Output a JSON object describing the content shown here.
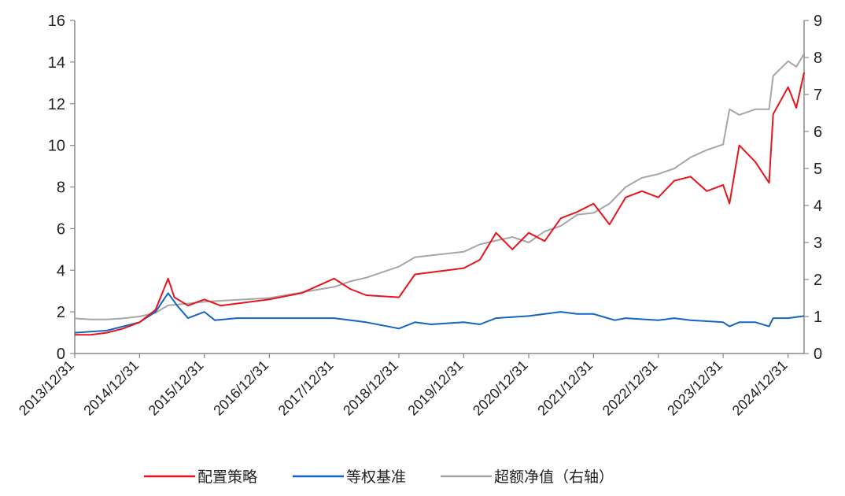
{
  "chart_data": {
    "type": "line",
    "title": "",
    "x_tick_labels": [
      "2013/12/31",
      "2014/12/31",
      "2015/12/31",
      "2016/12/31",
      "2017/12/31",
      "2018/12/31",
      "2019/12/31",
      "2020/12/31",
      "2021/12/31",
      "2022/12/31",
      "2023/12/31",
      "2024/12/31"
    ],
    "x_range": [
      "2013/12/31",
      "2025/03/31"
    ],
    "y_left": {
      "min": 0,
      "max": 16,
      "ticks": [
        0,
        2,
        4,
        6,
        8,
        10,
        12,
        14,
        16
      ]
    },
    "y_right": {
      "min": 0,
      "max": 9,
      "ticks": [
        0,
        1,
        2,
        3,
        4,
        5,
        6,
        7,
        8,
        9
      ]
    },
    "grid": false,
    "legend_position": "bottom",
    "series": [
      {
        "name": "配置策略",
        "axis": "left",
        "color": "#e8141c",
        "x": [
          "2013/12/31",
          "2014/03/31",
          "2014/06/30",
          "2014/09/30",
          "2014/12/31",
          "2015/03/31",
          "2015/06/10",
          "2015/07/15",
          "2015/09/30",
          "2015/12/31",
          "2016/03/31",
          "2016/06/30",
          "2016/12/31",
          "2017/06/30",
          "2017/12/31",
          "2018/03/31",
          "2018/06/30",
          "2018/12/31",
          "2019/03/31",
          "2019/06/30",
          "2019/12/31",
          "2020/03/31",
          "2020/06/30",
          "2020/09/30",
          "2020/12/31",
          "2021/03/31",
          "2021/06/30",
          "2021/09/30",
          "2021/12/31",
          "2022/03/31",
          "2022/06/30",
          "2022/09/30",
          "2022/12/31",
          "2023/03/31",
          "2023/06/30",
          "2023/09/30",
          "2023/12/31",
          "2024/02/05",
          "2024/03/31",
          "2024/06/30",
          "2024/09/15",
          "2024/10/08",
          "2024/12/31",
          "2025/02/15",
          "2025/03/31"
        ],
        "values": [
          0.9,
          0.9,
          1.0,
          1.2,
          1.5,
          2.1,
          3.6,
          2.7,
          2.3,
          2.6,
          2.3,
          2.4,
          2.6,
          2.9,
          3.6,
          3.1,
          2.8,
          2.7,
          3.8,
          3.9,
          4.1,
          4.5,
          5.8,
          5.0,
          5.8,
          5.4,
          6.5,
          6.8,
          7.2,
          6.2,
          7.5,
          7.8,
          7.5,
          8.3,
          8.5,
          7.8,
          8.1,
          7.2,
          10.0,
          9.2,
          8.2,
          11.5,
          12.8,
          11.8,
          13.5
        ]
      },
      {
        "name": "等权基准",
        "axis": "left",
        "color": "#1565c0",
        "x": [
          "2013/12/31",
          "2014/06/30",
          "2014/12/31",
          "2015/03/31",
          "2015/06/10",
          "2015/07/31",
          "2015/09/30",
          "2015/12/31",
          "2016/02/28",
          "2016/06/30",
          "2016/12/31",
          "2017/06/30",
          "2017/12/31",
          "2018/06/30",
          "2018/12/31",
          "2019/03/31",
          "2019/06/30",
          "2019/12/31",
          "2020/03/31",
          "2020/06/30",
          "2020/12/31",
          "2021/03/31",
          "2021/06/30",
          "2021/09/30",
          "2021/12/31",
          "2022/04/30",
          "2022/06/30",
          "2022/12/31",
          "2023/03/31",
          "2023/06/30",
          "2023/12/31",
          "2024/02/05",
          "2024/03/31",
          "2024/06/30",
          "2024/09/15",
          "2024/10/08",
          "2024/12/31",
          "2025/03/31"
        ],
        "values": [
          1.0,
          1.1,
          1.5,
          2.0,
          2.9,
          2.3,
          1.7,
          2.0,
          1.6,
          1.7,
          1.7,
          1.7,
          1.7,
          1.5,
          1.2,
          1.5,
          1.4,
          1.5,
          1.4,
          1.7,
          1.8,
          1.9,
          2.0,
          1.9,
          1.9,
          1.6,
          1.7,
          1.6,
          1.7,
          1.6,
          1.5,
          1.3,
          1.5,
          1.5,
          1.3,
          1.7,
          1.7,
          1.8
        ]
      },
      {
        "name": "超额净值（右轴）",
        "axis": "right",
        "color": "#a6a6a6",
        "x": [
          "2013/12/31",
          "2014/03/31",
          "2014/06/30",
          "2014/09/30",
          "2014/12/31",
          "2015/03/31",
          "2015/06/10",
          "2015/09/30",
          "2015/12/31",
          "2016/06/30",
          "2016/12/31",
          "2017/06/30",
          "2017/12/31",
          "2018/03/31",
          "2018/06/30",
          "2018/12/31",
          "2019/03/31",
          "2019/06/30",
          "2019/12/31",
          "2020/03/31",
          "2020/06/30",
          "2020/09/30",
          "2020/12/31",
          "2021/03/31",
          "2021/06/30",
          "2021/09/30",
          "2021/12/31",
          "2022/03/31",
          "2022/06/30",
          "2022/09/30",
          "2022/12/31",
          "2023/03/31",
          "2023/06/30",
          "2023/09/30",
          "2023/12/31",
          "2024/02/05",
          "2024/03/31",
          "2024/06/30",
          "2024/09/15",
          "2024/10/08",
          "2024/12/31",
          "2025/02/15",
          "2025/03/31"
        ],
        "values": [
          0.95,
          0.92,
          0.92,
          0.95,
          1.0,
          1.1,
          1.3,
          1.35,
          1.4,
          1.45,
          1.5,
          1.65,
          1.8,
          1.95,
          2.05,
          2.35,
          2.6,
          2.65,
          2.75,
          2.95,
          3.05,
          3.15,
          3.0,
          3.3,
          3.45,
          3.75,
          3.8,
          4.05,
          4.5,
          4.75,
          4.85,
          5.0,
          5.3,
          5.5,
          5.65,
          6.6,
          6.45,
          6.6,
          6.6,
          7.5,
          7.9,
          7.75,
          8.1
        ]
      }
    ]
  },
  "legend": {
    "items": [
      {
        "label": "配置策略",
        "color": "#e8141c"
      },
      {
        "label": "等权基准",
        "color": "#1565c0"
      },
      {
        "label": "超额净值（右轴）",
        "color": "#a6a6a6"
      }
    ]
  }
}
